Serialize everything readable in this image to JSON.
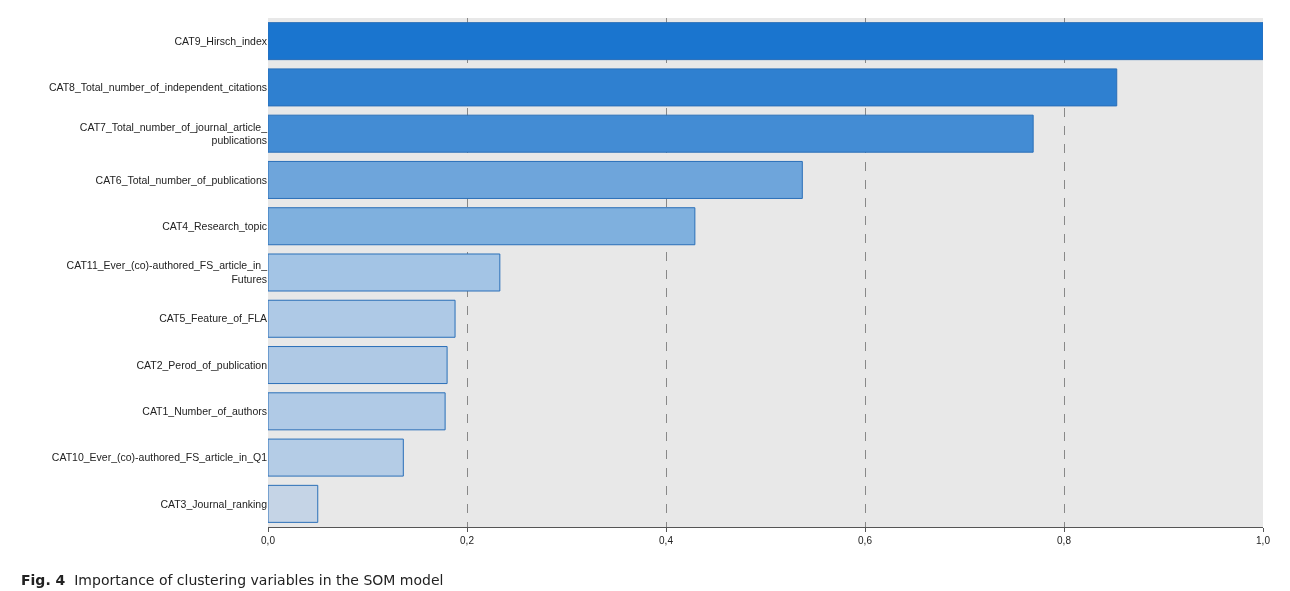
{
  "chart_data": {
    "type": "bar",
    "orientation": "horizontal",
    "categories": [
      "CAT9_Hirsch_index",
      "CAT8_Total_number_of_independent_citations",
      "CAT7_Total_number_of_journal_article_publications",
      "CAT6_Total_number_of_publications",
      "CAT4_Research_topic",
      "CAT11_Ever_(co)-authored_FS_article_in_Futures",
      "CAT5_Feature_of_FLA",
      "CAT2_Perod_of_publication",
      "CAT1_Number_of_authors",
      "CAT10_Ever_(co)-authored_FS_article_in_Q1",
      "CAT3_Journal_ranking"
    ],
    "values": [
      1.0,
      0.853,
      0.769,
      0.537,
      0.429,
      0.233,
      0.188,
      0.18,
      0.178,
      0.136,
      0.05
    ],
    "colors": [
      "#1a75cf",
      "#2f80d0",
      "#438cd4",
      "#6ea5db",
      "#7fb0de",
      "#a3c4e5",
      "#aec9e6",
      "#afc9e5",
      "#b0cae6",
      "#b4cce6",
      "#c5d4e6"
    ],
    "xlim": [
      0,
      1
    ],
    "xticks": [
      {
        "value": 0,
        "label": "0,0"
      },
      {
        "value": 0.2,
        "label": "0,2"
      },
      {
        "value": 0.4,
        "label": "0,4"
      },
      {
        "value": 0.6,
        "label": "0,6"
      },
      {
        "value": 0.8,
        "label": "0,8"
      },
      {
        "value": 1,
        "label": "1,0"
      }
    ],
    "grid": "x",
    "annotations": [
      "Fig. 4  Importance of clustering variables in the SOM model"
    ]
  }
}
